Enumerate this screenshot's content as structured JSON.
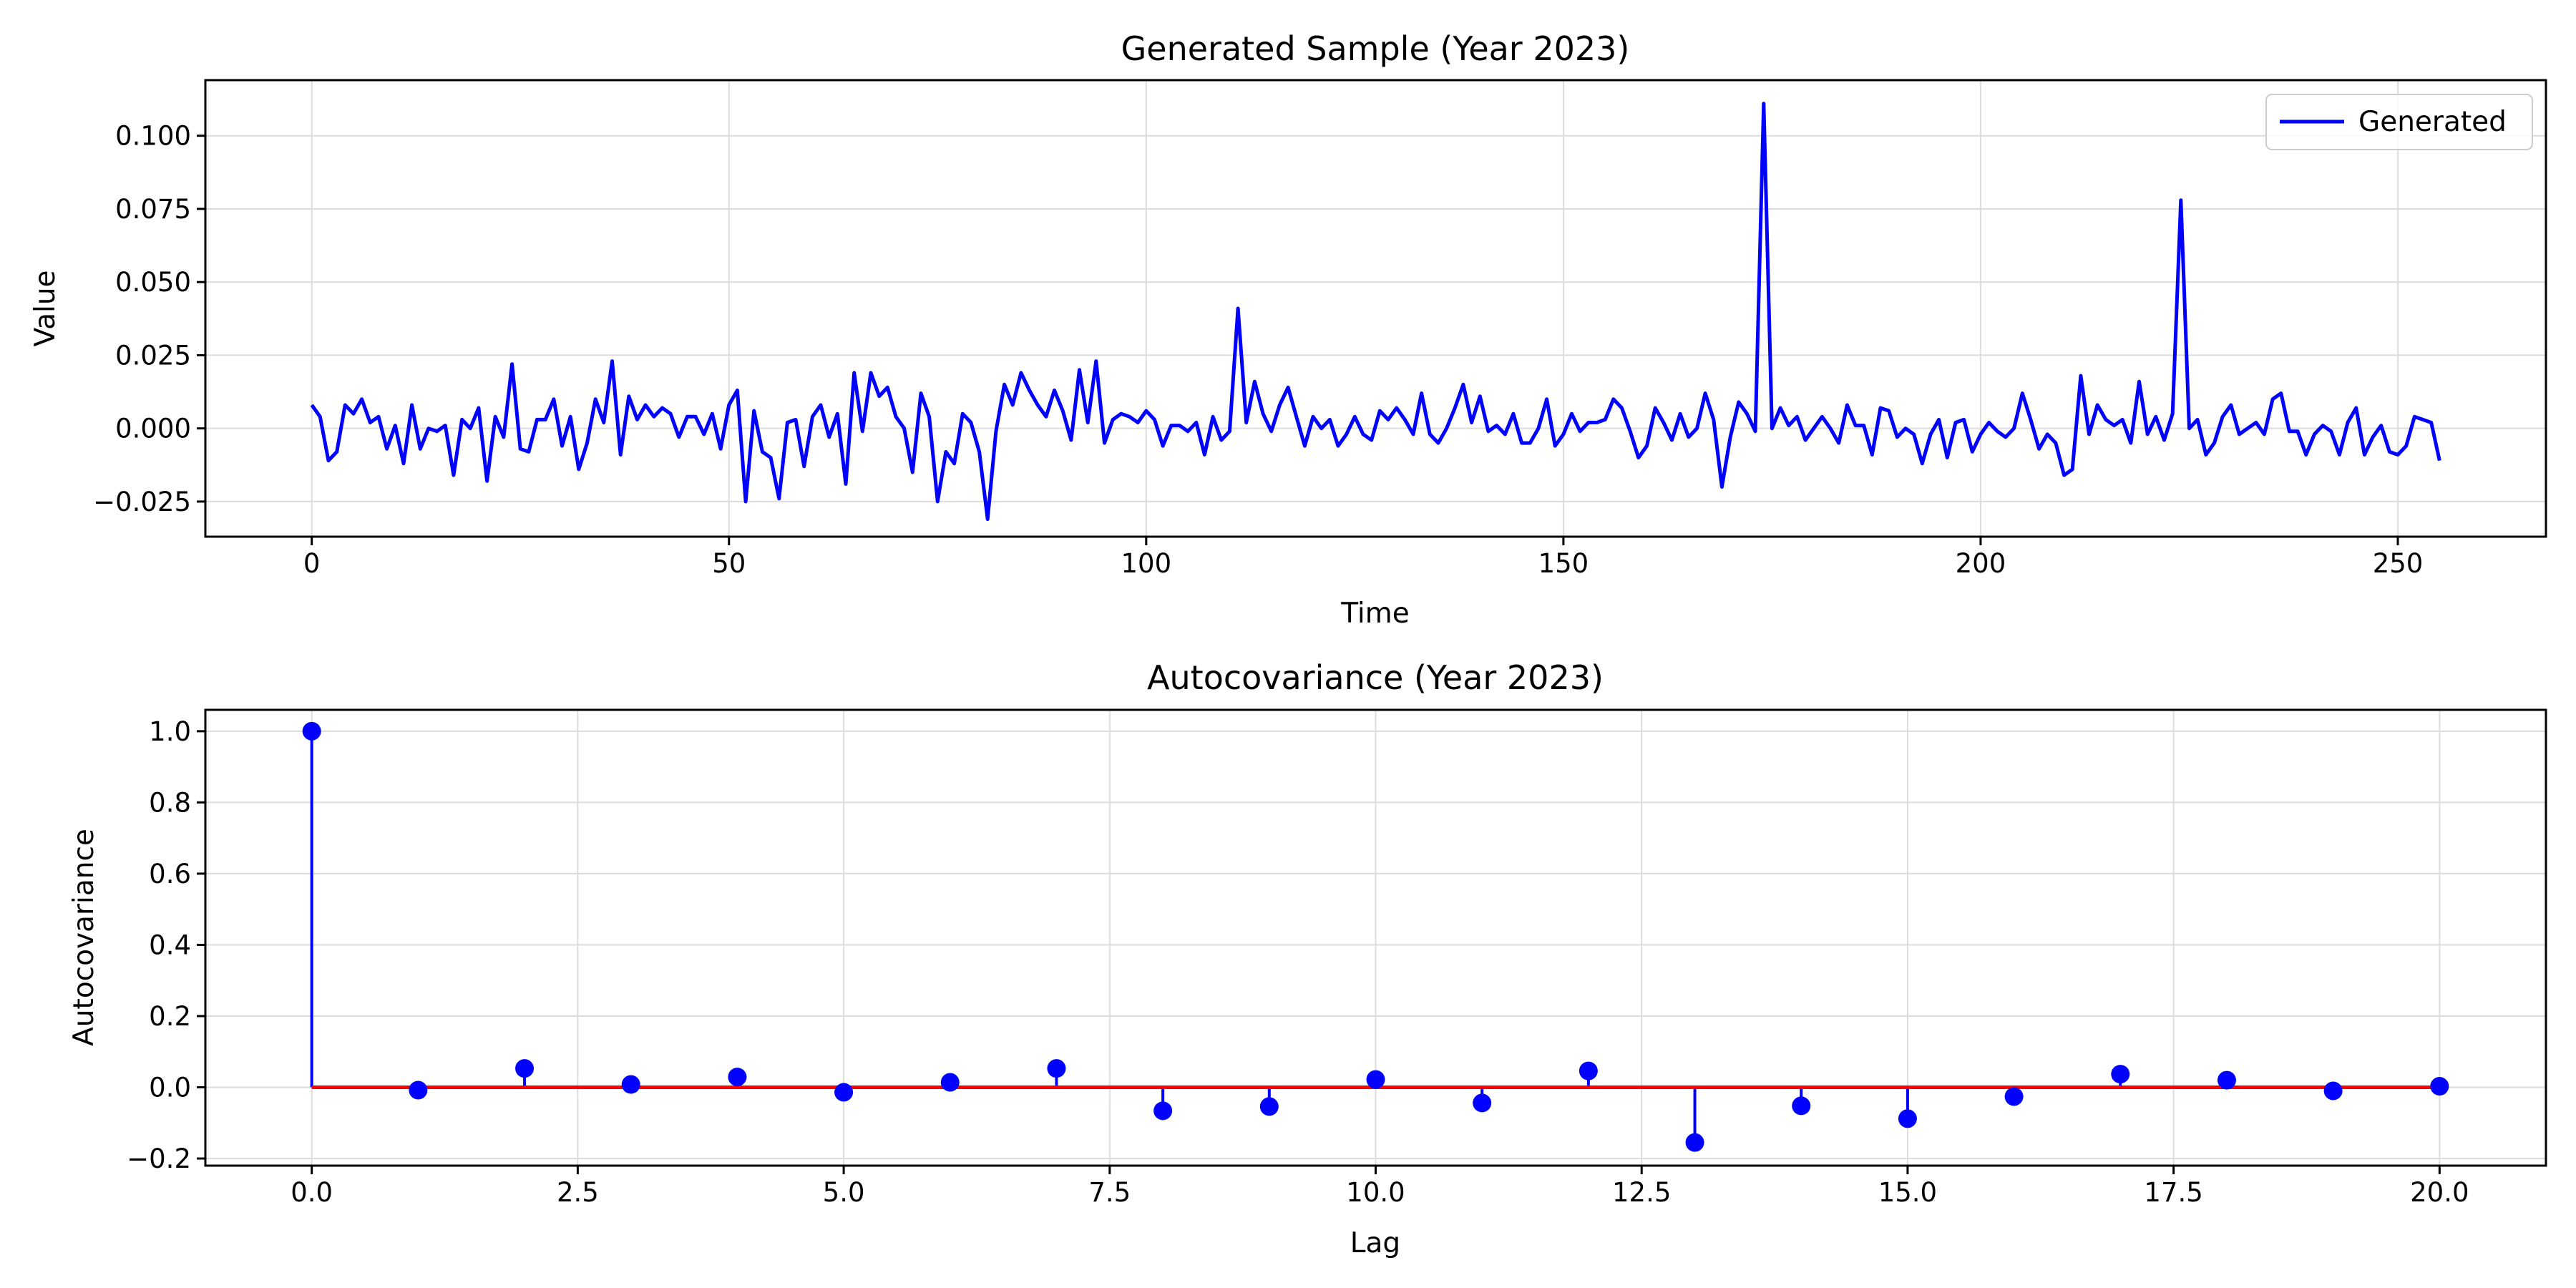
{
  "chart_data": [
    {
      "type": "line",
      "title": "Generated Sample (Year 2023)",
      "xlabel": "Time",
      "ylabel": "Value",
      "xlim": [
        -12.75,
        267.75
      ],
      "ylim": [
        -0.037,
        0.119
      ],
      "xticks": [
        0,
        50,
        100,
        150,
        200,
        250
      ],
      "yticks": [
        -0.025,
        0.0,
        0.025,
        0.05,
        0.075,
        0.1
      ],
      "xtick_labels": [
        "0",
        "50",
        "100",
        "150",
        "200",
        "250"
      ],
      "ytick_labels": [
        "−0.025",
        "0.000",
        "0.025",
        "0.050",
        "0.075",
        "0.100"
      ],
      "grid": true,
      "legend": {
        "position": "top-right",
        "entries": [
          "Generated"
        ]
      },
      "series": [
        {
          "name": "Generated",
          "color": "#0000ff",
          "x_start": 0,
          "x_step": 1,
          "values": [
            0.008,
            0.004,
            -0.011,
            -0.008,
            0.008,
            0.005,
            0.01,
            0.002,
            0.004,
            -0.007,
            0.001,
            -0.012,
            0.008,
            -0.007,
            0.0,
            -0.001,
            0.001,
            -0.016,
            0.003,
            0.0,
            0.007,
            -0.018,
            0.004,
            -0.003,
            0.022,
            -0.007,
            -0.008,
            0.003,
            0.003,
            0.01,
            -0.006,
            0.004,
            -0.014,
            -0.005,
            0.01,
            0.002,
            0.023,
            -0.009,
            0.011,
            0.003,
            0.008,
            0.004,
            0.007,
            0.005,
            -0.003,
            0.004,
            0.004,
            -0.002,
            0.005,
            -0.007,
            0.008,
            0.013,
            -0.025,
            0.006,
            -0.008,
            -0.01,
            -0.024,
            0.002,
            0.003,
            -0.013,
            0.004,
            0.008,
            -0.003,
            0.005,
            -0.019,
            0.019,
            -0.001,
            0.019,
            0.011,
            0.014,
            0.004,
            0.0,
            -0.015,
            0.012,
            0.004,
            -0.025,
            -0.008,
            -0.012,
            0.005,
            0.002,
            -0.008,
            -0.031,
            -0.001,
            0.015,
            0.008,
            0.019,
            0.013,
            0.008,
            0.004,
            0.013,
            0.006,
            -0.004,
            0.02,
            0.002,
            0.023,
            -0.005,
            0.003,
            0.005,
            0.004,
            0.002,
            0.006,
            0.003,
            -0.006,
            0.001,
            0.001,
            -0.001,
            0.002,
            -0.009,
            0.004,
            -0.004,
            -0.001,
            0.041,
            0.002,
            0.016,
            0.005,
            -0.001,
            0.008,
            0.014,
            0.004,
            -0.006,
            0.004,
            0.0,
            0.003,
            -0.006,
            -0.002,
            0.004,
            -0.002,
            -0.004,
            0.006,
            0.003,
            0.007,
            0.003,
            -0.002,
            0.012,
            -0.002,
            -0.005,
            0.0,
            0.007,
            0.015,
            0.002,
            0.011,
            -0.001,
            0.001,
            -0.002,
            0.005,
            -0.005,
            -0.005,
            0.0,
            0.01,
            -0.006,
            -0.002,
            0.005,
            -0.001,
            0.002,
            0.002,
            0.003,
            0.01,
            0.007,
            -0.001,
            -0.01,
            -0.006,
            0.007,
            0.002,
            -0.004,
            0.005,
            -0.003,
            0.0,
            0.012,
            0.003,
            -0.02,
            -0.003,
            0.009,
            0.005,
            -0.001,
            0.111,
            0.0,
            0.007,
            0.001,
            0.004,
            -0.004,
            0.0,
            0.004,
            0.0,
            -0.005,
            0.008,
            0.001,
            0.001,
            -0.009,
            0.007,
            0.006,
            -0.003,
            0.0,
            -0.002,
            -0.012,
            -0.002,
            0.003,
            -0.01,
            0.002,
            0.003,
            -0.008,
            -0.002,
            0.002,
            -0.001,
            -0.003,
            0.0,
            0.012,
            0.003,
            -0.007,
            -0.002,
            -0.005,
            -0.016,
            -0.014,
            0.018,
            -0.002,
            0.008,
            0.003,
            0.001,
            0.003,
            -0.005,
            0.016,
            -0.002,
            0.004,
            -0.004,
            0.005,
            0.078,
            0.0,
            0.003,
            -0.009,
            -0.005,
            0.004,
            0.008,
            -0.002,
            0.0,
            0.002,
            -0.002,
            0.01,
            0.012,
            -0.001,
            -0.001,
            -0.009,
            -0.002,
            0.001,
            -0.001,
            -0.009,
            0.002,
            0.007,
            -0.009,
            -0.003,
            0.001,
            -0.008,
            -0.009,
            -0.006,
            0.004,
            0.003,
            0.002,
            -0.011
          ]
        }
      ]
    },
    {
      "type": "stem",
      "title": "Autocovariance (Year 2023)",
      "xlabel": "Lag",
      "ylabel": "Autocovariance",
      "xlim": [
        -1.0,
        21.0
      ],
      "ylim": [
        -0.22,
        1.06
      ],
      "xticks": [
        0,
        2.5,
        5,
        7.5,
        10,
        12.5,
        15,
        17.5,
        20
      ],
      "yticks": [
        -0.2,
        0.0,
        0.2,
        0.4,
        0.6,
        0.8,
        1.0
      ],
      "xtick_labels": [
        "0.0",
        "2.5",
        "5.0",
        "7.5",
        "10.0",
        "12.5",
        "15.0",
        "17.5",
        "20.0"
      ],
      "ytick_labels": [
        "−0.2",
        "0.0",
        "0.2",
        "0.4",
        "0.6",
        "0.8",
        "1.0"
      ],
      "grid": true,
      "baseline_color": "#ff0000",
      "marker_color": "#0000ff",
      "x": [
        0,
        1,
        2,
        3,
        4,
        5,
        6,
        7,
        8,
        9,
        10,
        11,
        12,
        13,
        14,
        15,
        16,
        17,
        18,
        19,
        20
      ],
      "values": [
        1.0,
        -0.008,
        0.053,
        0.008,
        0.029,
        -0.014,
        0.014,
        0.053,
        -0.066,
        -0.054,
        0.022,
        -0.044,
        0.046,
        -0.155,
        -0.052,
        -0.088,
        -0.026,
        0.037,
        0.02,
        -0.01,
        0.003
      ]
    }
  ]
}
